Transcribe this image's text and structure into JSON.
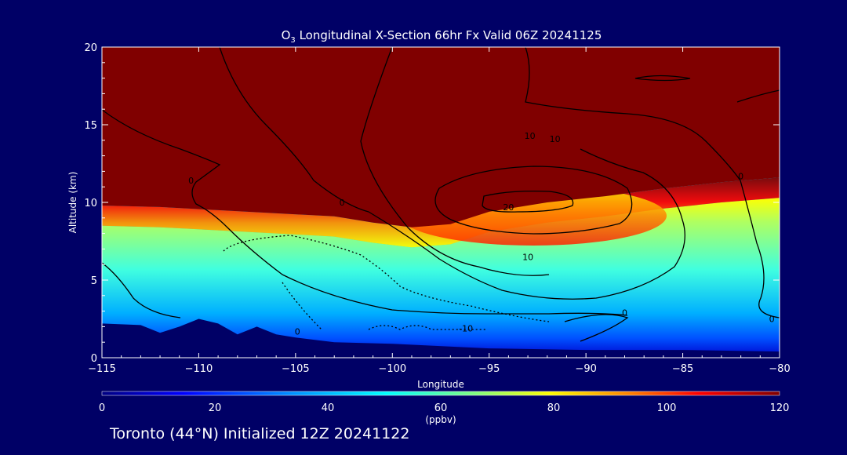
{
  "chart_data": {
    "type": "heatmap",
    "title_species_base": "O",
    "title_species_sub": "3",
    "title_rest": " Longitudinal X-Section 66hr  Fx Valid 06Z 20241125",
    "xlabel": "Longitude",
    "ylabel": "Altitude (km)",
    "xlim": [
      -115,
      -80
    ],
    "ylim": [
      0,
      20
    ],
    "xticks": [
      -115,
      -110,
      -105,
      -100,
      -95,
      -90,
      -85,
      -80
    ],
    "xtick_labels": [
      "−115",
      "−110",
      "−105",
      "−100",
      "−95",
      "−90",
      "−85",
      "−80"
    ],
    "yticks": [
      0,
      5,
      10,
      15,
      20
    ],
    "ytick_labels": [
      "0",
      "5",
      "10",
      "15",
      "20"
    ],
    "colorbar": {
      "min": 0,
      "max": 120,
      "ticks": [
        0,
        20,
        40,
        60,
        80,
        100,
        120
      ],
      "tick_labels": [
        "0",
        "20",
        "40",
        "60",
        "80",
        "100",
        "120"
      ],
      "unit_label": "(ppbv)",
      "colors": [
        "#000080",
        "#0000ff",
        "#00a0ff",
        "#00ffff",
        "#90ff70",
        "#ffff00",
        "#ff8000",
        "#ff0000",
        "#800000"
      ]
    },
    "filled_field": {
      "tropopause_km": [
        [
          -115,
          9.8
        ],
        [
          -112,
          9.7
        ],
        [
          -109,
          9.5
        ],
        [
          -106,
          9.3
        ],
        [
          -103,
          9.1
        ],
        [
          -101,
          8.7
        ],
        [
          -99,
          8.4
        ],
        [
          -97,
          8.6
        ],
        [
          -95,
          9.4
        ],
        [
          -92,
          10.0
        ],
        [
          -89,
          10.4
        ],
        [
          -86,
          10.9
        ],
        [
          -83,
          11.3
        ],
        [
          -80,
          11.6
        ]
      ],
      "surface_km": [
        [
          -115,
          2.2
        ],
        [
          -113,
          2.1
        ],
        [
          -112,
          1.6
        ],
        [
          -111,
          2.0
        ],
        [
          -110,
          2.5
        ],
        [
          -109,
          2.2
        ],
        [
          -108,
          1.5
        ],
        [
          -107,
          2.0
        ],
        [
          -106,
          1.5
        ],
        [
          -105,
          1.3
        ],
        [
          -103,
          1.0
        ],
        [
          -100,
          0.9
        ],
        [
          -95,
          0.6
        ],
        [
          -90,
          0.5
        ],
        [
          -85,
          0.5
        ],
        [
          -80,
          0.4
        ]
      ]
    },
    "contour_labels": [
      {
        "text": "0",
        "lon": -110.4,
        "alt": 11.2
      },
      {
        "text": "0",
        "lon": -102.6,
        "alt": 9.8
      },
      {
        "text": "10",
        "lon": -92.9,
        "alt": 14.1
      },
      {
        "text": "10",
        "lon": -91.6,
        "alt": 13.9
      },
      {
        "text": "20",
        "lon": -94.0,
        "alt": 9.5
      },
      {
        "text": "10",
        "lon": -93.0,
        "alt": 6.3
      },
      {
        "text": "0",
        "lon": -104.9,
        "alt": 1.5
      },
      {
        "text": "-10",
        "lon": -96.2,
        "alt": 1.7
      },
      {
        "text": "0",
        "lon": -88.0,
        "alt": 2.7
      },
      {
        "text": "0",
        "lon": -80.4,
        "alt": 2.3
      },
      {
        "text": "0",
        "lon": -82.0,
        "alt": 11.5
      }
    ]
  },
  "footer": "Toronto (44°N) Initialized 12Z 20241122"
}
